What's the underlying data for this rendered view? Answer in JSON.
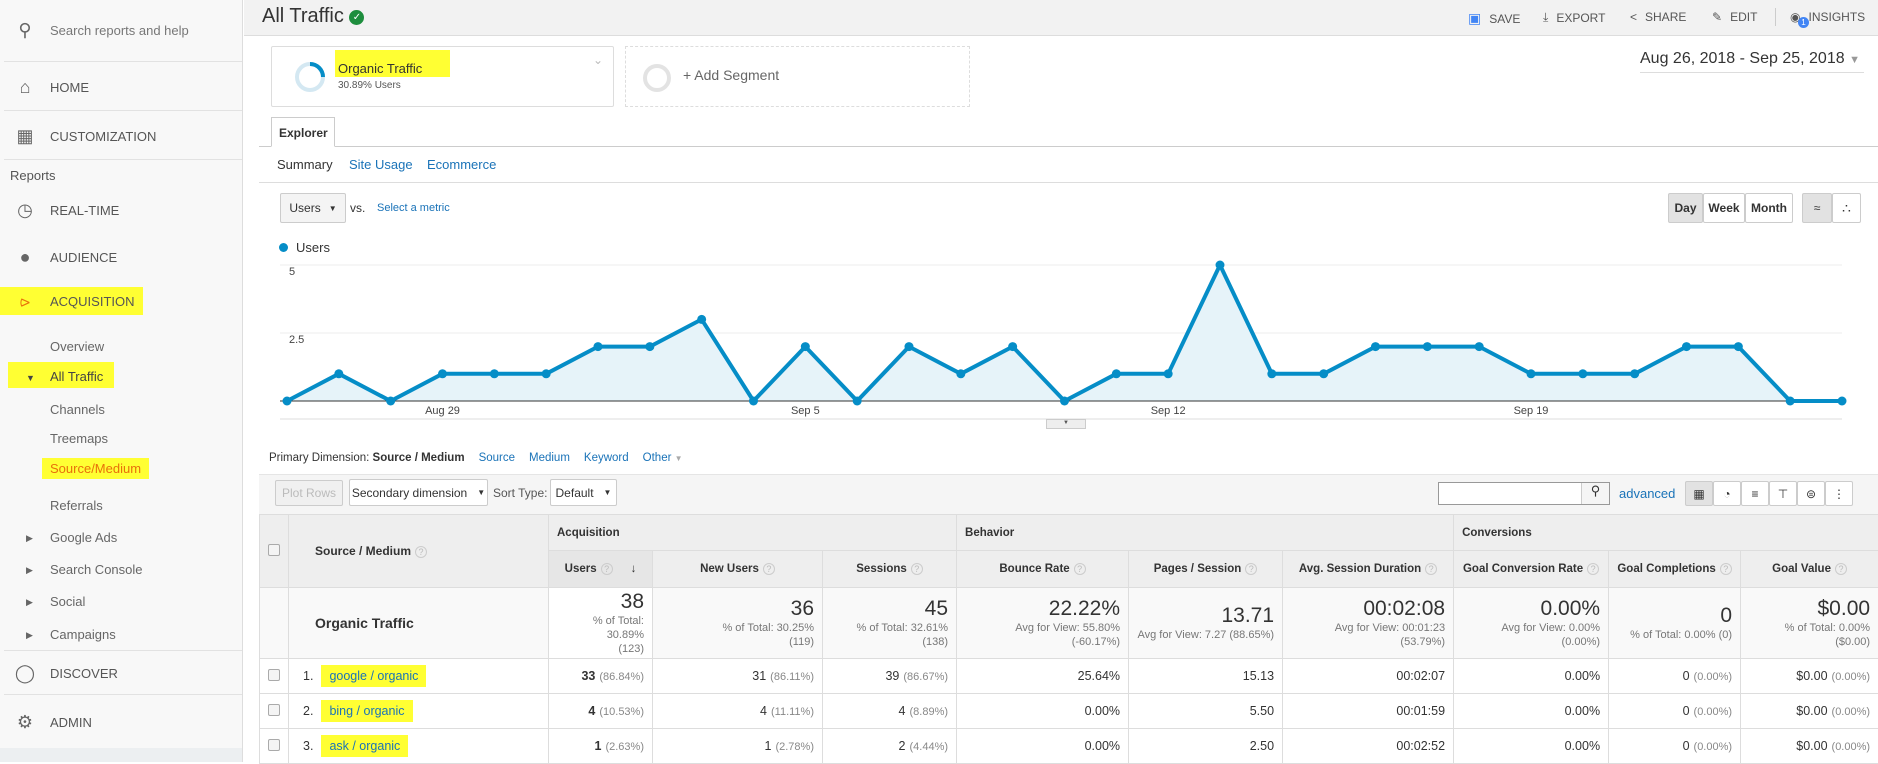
{
  "sidebar": {
    "search_placeholder": "Search reports and help",
    "home": "HOME",
    "customization": "CUSTOMIZATION",
    "reports_label": "Reports",
    "realtime": "REAL-TIME",
    "audience": "AUDIENCE",
    "acquisition": "ACQUISITION",
    "sub": {
      "overview": "Overview",
      "all_traffic": "All Traffic",
      "channels": "Channels",
      "treemaps": "Treemaps",
      "source_medium": "Source/Medium",
      "referrals": "Referrals",
      "google_ads": "Google Ads",
      "search_console": "Search Console",
      "social": "Social",
      "campaigns": "Campaigns"
    },
    "discover": "DISCOVER",
    "admin": "ADMIN"
  },
  "header": {
    "title": "All Traffic",
    "save": "SAVE",
    "export": "EXPORT",
    "share": "SHARE",
    "edit": "EDIT",
    "insights": "INSIGHTS",
    "insights_badge": "1"
  },
  "segment": {
    "name": "Organic Traffic",
    "detail": "30.89% Users",
    "add": "+ Add Segment"
  },
  "date_range": "Aug 26, 2018 - Sep 25, 2018",
  "explorer": {
    "tab": "Explorer",
    "subtabs": [
      "Summary",
      "Site Usage",
      "Ecommerce"
    ]
  },
  "metric": {
    "selected": "Users",
    "vs": "vs.",
    "select": "Select a metric"
  },
  "granularity": [
    "Day",
    "Week",
    "Month"
  ],
  "colors": {
    "accent": "#058dc7",
    "highlight": "#ffff33",
    "acquisition": "#e8710a"
  },
  "chart_data": {
    "type": "area",
    "legend": "Users",
    "x": [
      "Aug 26",
      "Aug 27",
      "Aug 28",
      "Aug 29",
      "Aug 30",
      "Aug 31",
      "Sep 1",
      "Sep 2",
      "Sep 3",
      "Sep 4",
      "Sep 5",
      "Sep 6",
      "Sep 7",
      "Sep 8",
      "Sep 9",
      "Sep 10",
      "Sep 11",
      "Sep 12",
      "Sep 13",
      "Sep 14",
      "Sep 15",
      "Sep 16",
      "Sep 17",
      "Sep 18",
      "Sep 19",
      "Sep 20",
      "Sep 21",
      "Sep 22",
      "Sep 23",
      "Sep 24",
      "Sep 25"
    ],
    "values": [
      0,
      1,
      0,
      1,
      1,
      1,
      2,
      2,
      3,
      0,
      2,
      0,
      2,
      1,
      2,
      0,
      1,
      1,
      5,
      1,
      1,
      2,
      2,
      2,
      1,
      1,
      1,
      2,
      2,
      0,
      0
    ],
    "yticks": [
      "5",
      "2.5"
    ],
    "xticks": [
      "Aug 29",
      "Sep 5",
      "Sep 12",
      "Sep 19"
    ],
    "ylim": [
      0,
      5
    ]
  },
  "dimension": {
    "label": "Primary Dimension:",
    "active": "Source / Medium",
    "others": [
      "Source",
      "Medium",
      "Keyword",
      "Other"
    ]
  },
  "toolbar": {
    "plot_rows": "Plot Rows",
    "secondary": "Secondary dimension",
    "sort_label": "Sort Type:",
    "sort_value": "Default",
    "advanced": "advanced"
  },
  "table": {
    "groups": [
      "Acquisition",
      "Behavior",
      "Conversions"
    ],
    "dim_header": "Source / Medium",
    "columns": [
      "Users",
      "New Users",
      "Sessions",
      "Bounce Rate",
      "Pages / Session",
      "Avg. Session Duration",
      "Goal Conversion Rate",
      "Goal Completions",
      "Goal Value"
    ],
    "totals": {
      "label": "Organic Traffic",
      "cells": [
        {
          "v": "38",
          "s1": "% of Total: 30.89%",
          "s2": "(123)"
        },
        {
          "v": "36",
          "s1": "% of Total: 30.25%",
          "s2": "(119)"
        },
        {
          "v": "45",
          "s1": "% of Total: 32.61%",
          "s2": "(138)"
        },
        {
          "v": "22.22%",
          "s1": "Avg for View: 55.80% (-60.17%)",
          "s2": ""
        },
        {
          "v": "13.71",
          "s1": "Avg for View: 7.27 (88.65%)",
          "s2": ""
        },
        {
          "v": "00:02:08",
          "s1": "Avg for View: 00:01:23 (53.79%)",
          "s2": ""
        },
        {
          "v": "0.00%",
          "s1": "Avg for View: 0.00% (0.00%)",
          "s2": ""
        },
        {
          "v": "0",
          "s1": "% of Total: 0.00% (0)",
          "s2": ""
        },
        {
          "v": "$0.00",
          "s1": "% of Total: 0.00% ($0.00)",
          "s2": ""
        }
      ]
    },
    "rows": [
      {
        "n": "1.",
        "name": "google / organic",
        "users": "33",
        "users_p": "(86.84%)",
        "new": "31",
        "new_p": "(86.11%)",
        "sess": "39",
        "sess_p": "(86.67%)",
        "bounce": "25.64%",
        "pages": "15.13",
        "dur": "00:02:07",
        "gcr": "0.00%",
        "gc": "0",
        "gc_p": "(0.00%)",
        "gv": "$0.00",
        "gv_p": "(0.00%)"
      },
      {
        "n": "2.",
        "name": "bing / organic",
        "users": "4",
        "users_p": "(10.53%)",
        "new": "4",
        "new_p": "(11.11%)",
        "sess": "4",
        "sess_p": "(8.89%)",
        "bounce": "0.00%",
        "pages": "5.50",
        "dur": "00:01:59",
        "gcr": "0.00%",
        "gc": "0",
        "gc_p": "(0.00%)",
        "gv": "$0.00",
        "gv_p": "(0.00%)"
      },
      {
        "n": "3.",
        "name": "ask / organic",
        "users": "1",
        "users_p": "(2.63%)",
        "new": "1",
        "new_p": "(2.78%)",
        "sess": "2",
        "sess_p": "(4.44%)",
        "bounce": "0.00%",
        "pages": "2.50",
        "dur": "00:02:52",
        "gcr": "0.00%",
        "gc": "0",
        "gc_p": "(0.00%)",
        "gv": "$0.00",
        "gv_p": "(0.00%)"
      }
    ]
  }
}
